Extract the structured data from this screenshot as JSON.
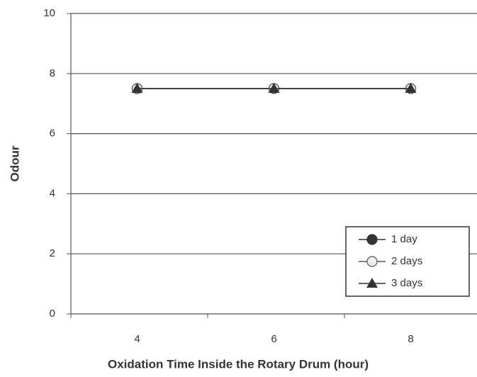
{
  "chart_data": {
    "type": "line",
    "xlabel": "Oxidation Time Inside the Rotary Drum (hour)",
    "ylabel": "Odour",
    "categories": [
      "4",
      "6",
      "8"
    ],
    "series": [
      {
        "name": "1 day",
        "color": "#333333",
        "marker": "filled-circle",
        "values": [
          7.5,
          7.5,
          7.5
        ]
      },
      {
        "name": "2 days",
        "color": "#555555",
        "marker": "open-circle",
        "values": [
          7.5,
          7.5,
          7.5
        ]
      },
      {
        "name": "3 days",
        "color": "#333333",
        "marker": "triangle",
        "values": [
          7.5,
          7.5,
          7.5
        ]
      }
    ],
    "ylim": [
      0,
      10
    ],
    "yticks": [
      0,
      2,
      4,
      6,
      8,
      10
    ],
    "grid": true,
    "legend": "lower right"
  }
}
